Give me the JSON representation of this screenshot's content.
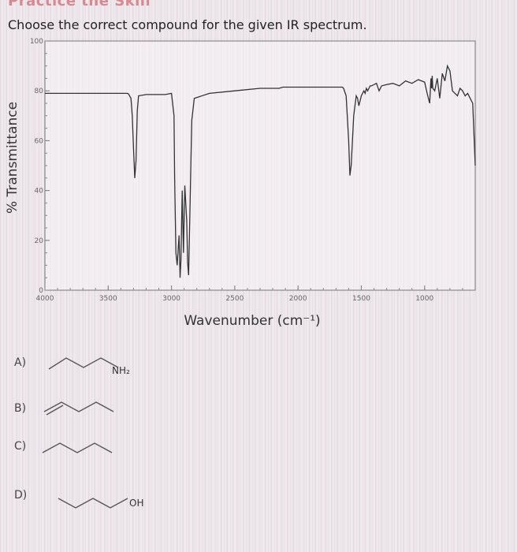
{
  "page": {
    "header": "Practice the Skill",
    "question": "Choose the correct compound for the given IR spectrum."
  },
  "chart_data": {
    "type": "line",
    "title": "",
    "xlabel": "Wavenumber (cm⁻¹)",
    "ylabel": "% Transmittance",
    "xlim": [
      4000,
      600
    ],
    "ylim": [
      0,
      100
    ],
    "x_ticks": [
      "4000",
      "3500",
      "3000",
      "2500",
      "2000",
      "1500",
      "1000"
    ],
    "y_ticks": [
      "0",
      "20",
      "40",
      "60",
      "80",
      "100"
    ],
    "series": [
      {
        "x": [
          4000,
          3600,
          3350,
          3340,
          3320,
          3310,
          3300,
          3290,
          3280,
          3270,
          3260,
          3200,
          3050,
          3000,
          2980,
          2975,
          2965,
          2955,
          2940,
          2932,
          2925,
          2915,
          2905,
          2895,
          2880,
          2872,
          2865,
          2855,
          2840,
          2820,
          2700,
          2500,
          2300,
          2150,
          2120,
          2100,
          2000,
          1900,
          1800,
          1700,
          1650,
          1640,
          1620,
          1600,
          1590,
          1580,
          1560,
          1540,
          1530,
          1520,
          1500,
          1480,
          1470,
          1460,
          1450,
          1440,
          1430,
          1420,
          1380,
          1360,
          1340,
          1300,
          1250,
          1200,
          1150,
          1100,
          1050,
          1000,
          980,
          960,
          950,
          945,
          940,
          935,
          920,
          900,
          880,
          860,
          840,
          820,
          800,
          780,
          760,
          740,
          720,
          700,
          680,
          660,
          640,
          620,
          600
        ],
        "y": [
          79,
          79,
          79,
          78.8,
          77,
          70,
          57,
          45,
          52,
          72,
          78,
          78.5,
          78.5,
          79,
          70,
          45,
          15,
          10,
          22,
          5,
          12,
          40,
          15,
          42,
          28,
          11,
          6,
          30,
          68,
          77,
          79,
          80,
          81,
          81,
          81.5,
          81.5,
          81.5,
          81.5,
          81.5,
          81.5,
          81.5,
          81,
          78,
          60,
          46,
          50,
          70,
          78,
          77,
          74,
          78,
          80,
          79,
          81,
          80,
          81,
          82,
          82,
          83,
          80,
          82,
          82.5,
          83,
          82,
          84,
          83,
          84.5,
          83.5,
          79,
          75,
          85,
          81,
          86,
          81,
          80,
          85,
          77,
          87,
          84,
          90,
          88,
          80,
          79,
          78,
          81,
          80,
          78,
          79,
          77,
          75,
          50
        ]
      }
    ]
  },
  "options": [
    {
      "label": "A)",
      "substituent": "NH₂"
    },
    {
      "label": "B)",
      "substituent": ""
    },
    {
      "label": "C)",
      "substituent": ""
    },
    {
      "label": "D)",
      "substituent": "OH"
    }
  ]
}
